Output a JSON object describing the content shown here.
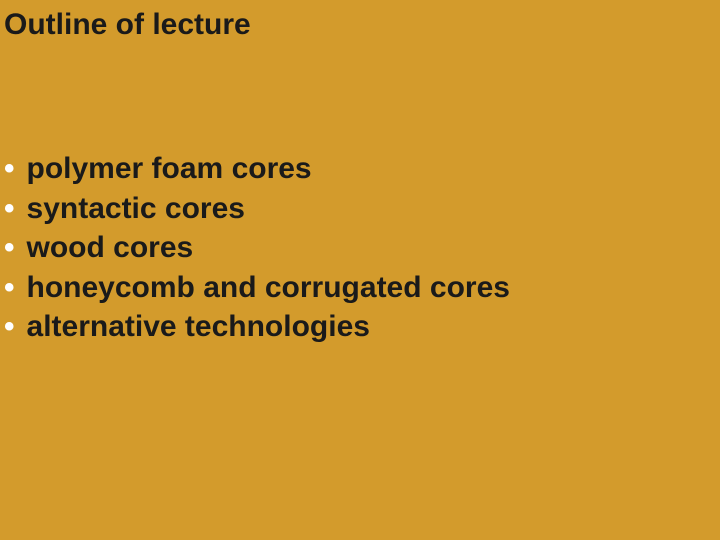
{
  "slide": {
    "background_color": "#d39b2c",
    "title": "Outline of lecture",
    "title_color": "#1a1a1a",
    "title_fontsize": 30,
    "title_fontweight": "bold",
    "bullet_color": "#ffffff",
    "text_color": "#1a1a1a",
    "text_fontsize": 30,
    "text_fontweight": "bold",
    "font_family": "Verdana, Geneva, sans-serif",
    "items": [
      {
        "label": "polymer foam cores"
      },
      {
        "label": "syntactic cores"
      },
      {
        "label": "wood cores"
      },
      {
        "label": "honeycomb and corrugated cores"
      },
      {
        "label": "alternative technologies"
      }
    ]
  }
}
